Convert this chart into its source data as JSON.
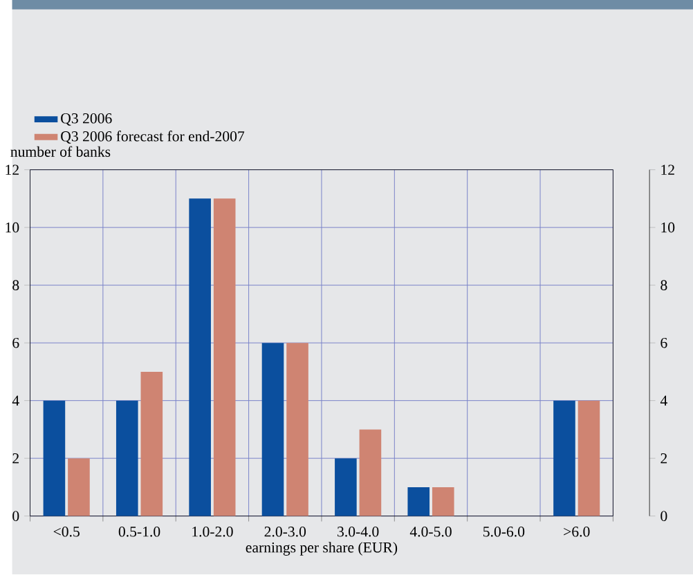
{
  "chart_data": {
    "type": "bar",
    "xlabel": "earnings per share (EUR)",
    "ylabel": "number of banks",
    "categories": [
      "<0.5",
      "0.5-1.0",
      "1.0-2.0",
      "2.0-3.0",
      "3.0-4.0",
      "4.0-5.0",
      "5.0-6.0",
      ">6.0"
    ],
    "series": [
      {
        "name": "Q3 2006",
        "color": "#0b4f9e",
        "values": [
          4,
          4,
          11,
          6,
          2,
          1,
          0,
          4
        ]
      },
      {
        "name": "Q3 2006 forecast for end-2007",
        "color": "#cf8472",
        "values": [
          2,
          5,
          11,
          6,
          3,
          1,
          0,
          4
        ]
      }
    ],
    "ylim": [
      0,
      12
    ],
    "yticks": [
      0,
      2,
      4,
      6,
      8,
      10,
      12
    ],
    "y2lim": [
      0,
      12
    ],
    "y2ticks": [
      0,
      2,
      4,
      6,
      8,
      10,
      12
    ],
    "grid": true,
    "legend": "top left"
  }
}
